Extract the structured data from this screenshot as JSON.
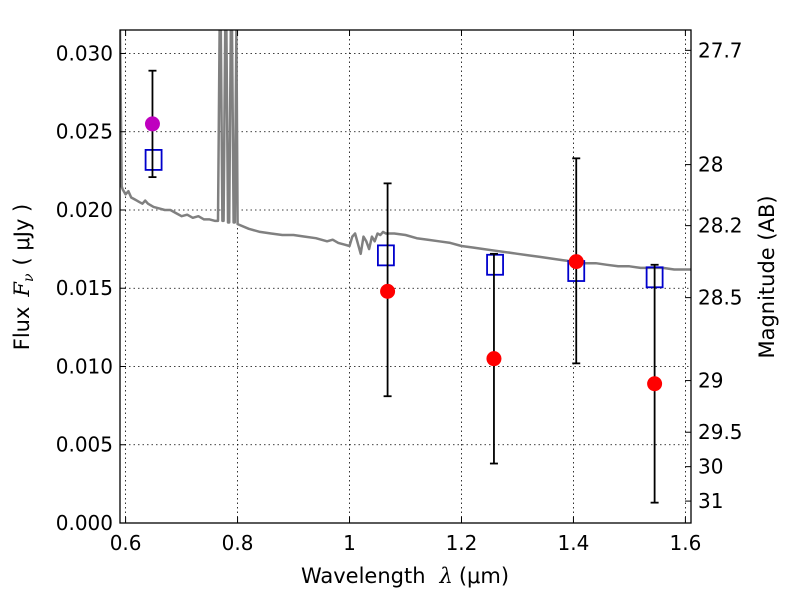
{
  "chart_data": {
    "type": "scatter",
    "xlabel": "Wavelength",
    "xlabel_symbol": "λ",
    "xlabel_unit": "(μm)",
    "ylabel": "Flux",
    "ylabel_symbol": "F",
    "ylabel_subscript": "ν",
    "ylabel_unit": "( μJy )",
    "y2label": "Magnitude (AB)",
    "xlim": [
      0.59,
      1.61
    ],
    "ylim": [
      0.0,
      0.0315
    ],
    "grid": true,
    "x_ticks": [
      {
        "value": 0.6,
        "label": "0.6"
      },
      {
        "value": 0.8,
        "label": "0.8"
      },
      {
        "value": 1.0,
        "label": "1"
      },
      {
        "value": 1.2,
        "label": "1.2"
      },
      {
        "value": 1.4,
        "label": "1.4"
      },
      {
        "value": 1.6,
        "label": "1.6"
      }
    ],
    "y_ticks": [
      {
        "value": 0.0,
        "label": "0.000"
      },
      {
        "value": 0.005,
        "label": "0.005"
      },
      {
        "value": 0.01,
        "label": "0.010"
      },
      {
        "value": 0.015,
        "label": "0.015"
      },
      {
        "value": 0.02,
        "label": "0.020"
      },
      {
        "value": 0.025,
        "label": "0.025"
      },
      {
        "value": 0.03,
        "label": "0.030"
      }
    ],
    "y2_ticks": [
      {
        "label": "27.7",
        "flux": 0.0302
      },
      {
        "label": "28",
        "flux": 0.0229
      },
      {
        "label": "28.2",
        "flux": 0.019
      },
      {
        "label": "28.5",
        "flux": 0.0144
      },
      {
        "label": "29",
        "flux": 0.0091
      },
      {
        "label": "29.5",
        "flux": 0.0058
      },
      {
        "label": "30",
        "flux": 0.0036
      },
      {
        "label": "31",
        "flux": 0.0014
      }
    ],
    "colors": {
      "model": "#808080",
      "observed": "#ff0000",
      "observed_first": "#bf00bf",
      "model_band": "#0000cc",
      "errorbar": "#000000"
    },
    "model_spectrum": {
      "x": [
        0.59,
        0.593,
        0.595,
        0.6,
        0.605,
        0.61,
        0.615,
        0.62,
        0.625,
        0.63,
        0.635,
        0.64,
        0.65,
        0.66,
        0.67,
        0.68,
        0.69,
        0.7,
        0.71,
        0.72,
        0.73,
        0.74,
        0.75,
        0.76,
        0.765,
        0.768,
        0.77,
        0.773,
        0.775,
        0.778,
        0.78,
        0.783,
        0.785,
        0.788,
        0.79,
        0.793,
        0.795,
        0.798,
        0.8,
        0.82,
        0.84,
        0.86,
        0.88,
        0.9,
        0.92,
        0.94,
        0.96,
        0.97,
        0.98,
        0.99,
        1.0,
        1.005,
        1.01,
        1.02,
        1.025,
        1.03,
        1.035,
        1.04,
        1.045,
        1.05,
        1.055,
        1.06,
        1.065,
        1.08,
        1.1,
        1.12,
        1.14,
        1.16,
        1.18,
        1.2,
        1.22,
        1.24,
        1.26,
        1.28,
        1.3,
        1.32,
        1.34,
        1.36,
        1.38,
        1.4,
        1.42,
        1.44,
        1.46,
        1.48,
        1.5,
        1.52,
        1.54,
        1.56,
        1.58,
        1.6,
        1.61
      ],
      "y": [
        0.0315,
        0.0215,
        0.0213,
        0.021,
        0.0212,
        0.0208,
        0.0207,
        0.0206,
        0.0205,
        0.0204,
        0.0206,
        0.0204,
        0.0202,
        0.0201,
        0.02,
        0.02,
        0.0198,
        0.0196,
        0.0197,
        0.0195,
        0.0196,
        0.0194,
        0.0194,
        0.0193,
        0.0193,
        0.0315,
        0.0315,
        0.0193,
        0.0193,
        0.0315,
        0.0315,
        0.0192,
        0.0192,
        0.0315,
        0.0315,
        0.0192,
        0.0192,
        0.0315,
        0.0191,
        0.0188,
        0.0186,
        0.0185,
        0.0184,
        0.0184,
        0.0183,
        0.0182,
        0.018,
        0.0181,
        0.0179,
        0.0178,
        0.0177,
        0.0183,
        0.0185,
        0.0172,
        0.0183,
        0.018,
        0.0175,
        0.0183,
        0.018,
        0.0185,
        0.0184,
        0.0186,
        0.0185,
        0.0185,
        0.0184,
        0.0182,
        0.0181,
        0.018,
        0.0179,
        0.0177,
        0.0176,
        0.0175,
        0.0174,
        0.0173,
        0.0172,
        0.0171,
        0.017,
        0.0169,
        0.0168,
        0.0167,
        0.0166,
        0.0166,
        0.0165,
        0.0164,
        0.0164,
        0.0163,
        0.0163,
        0.0163,
        0.0162,
        0.0162,
        0.0162
      ]
    },
    "model_bands": [
      {
        "x": 0.65,
        "y": 0.0232
      },
      {
        "x": 1.065,
        "y": 0.0171
      },
      {
        "x": 1.26,
        "y": 0.0165
      },
      {
        "x": 1.405,
        "y": 0.0161
      },
      {
        "x": 1.545,
        "y": 0.0157
      }
    ],
    "observations": [
      {
        "x": 0.648,
        "y": 0.0255,
        "yerr_low": 0.0221,
        "yerr_high": 0.0289
      },
      {
        "x": 1.068,
        "y": 0.0148,
        "yerr_low": 0.0081,
        "yerr_high": 0.0217
      },
      {
        "x": 1.258,
        "y": 0.0105,
        "yerr_low": 0.0038,
        "yerr_high": 0.0172
      },
      {
        "x": 1.405,
        "y": 0.0167,
        "yerr_low": 0.0102,
        "yerr_high": 0.0233
      },
      {
        "x": 1.545,
        "y": 0.0089,
        "yerr_low": 0.0013,
        "yerr_high": 0.0165
      }
    ]
  }
}
